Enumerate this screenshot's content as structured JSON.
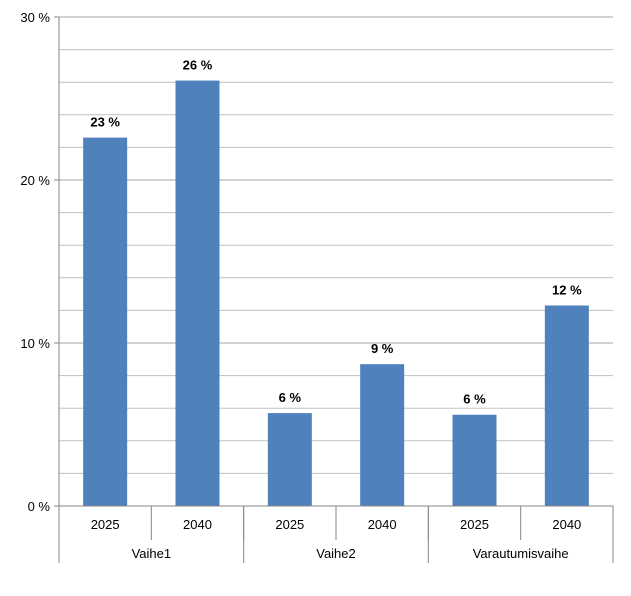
{
  "chart_data": {
    "type": "bar",
    "title": "",
    "xlabel": "",
    "ylabel": "",
    "ylim": [
      0,
      30
    ],
    "yticks": [
      0,
      10,
      20,
      30
    ],
    "ytick_labels": [
      "0 %",
      "10 %",
      "20 %",
      "30 %"
    ],
    "minor_grid_step": 2,
    "grid": true,
    "groups": [
      {
        "name": "Vaihe1",
        "categories": [
          "2025",
          "2040"
        ]
      },
      {
        "name": "Vaihe2",
        "categories": [
          "2025",
          "2040"
        ]
      },
      {
        "name": "Varautumisvaihe",
        "categories": [
          "2025",
          "2040"
        ]
      }
    ],
    "categories": [
      "2025",
      "2040",
      "2025",
      "2040",
      "2025",
      "2040"
    ],
    "values": [
      22.6,
      26.1,
      5.7,
      8.7,
      5.6,
      12.3
    ],
    "data_labels": [
      "23 %",
      "26 %",
      "6 %",
      "9 %",
      "6 %",
      "12 %"
    ],
    "bar_color": "#4F81BD",
    "grid_color": "#C0C0C0",
    "axis_color": "#868686"
  }
}
